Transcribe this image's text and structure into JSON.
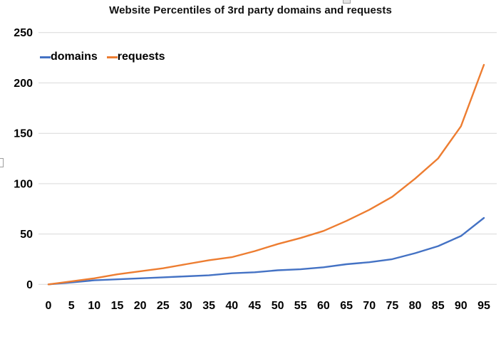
{
  "title": "Website Percentiles of 3rd party domains and requests",
  "legend": {
    "items": [
      {
        "label": "domains",
        "color": "#4472C4"
      },
      {
        "label": "requests",
        "color": "#ED7D31"
      }
    ]
  },
  "colors": {
    "domains": "#4472C4",
    "requests": "#ED7D31",
    "gridline": "#D9D9D9",
    "axis_text": "#000000",
    "background": "#FFFFFF"
  },
  "chart_data": {
    "type": "line",
    "title": "Website Percentiles of 3rd party domains and requests",
    "xlabel": "",
    "ylabel": "",
    "x": [
      0,
      5,
      10,
      15,
      20,
      25,
      30,
      35,
      40,
      45,
      50,
      55,
      60,
      65,
      70,
      75,
      80,
      85,
      90,
      95
    ],
    "series": [
      {
        "name": "domains",
        "color": "#4472C4",
        "values": [
          0,
          2,
          4,
          5,
          6,
          7,
          8,
          9,
          11,
          12,
          14,
          15,
          17,
          20,
          22,
          25,
          31,
          38,
          48,
          66
        ]
      },
      {
        "name": "requests",
        "color": "#ED7D31",
        "values": [
          0,
          3,
          6,
          10,
          13,
          16,
          20,
          24,
          27,
          33,
          40,
          46,
          53,
          63,
          74,
          87,
          105,
          125,
          157,
          218
        ]
      }
    ],
    "ylim": [
      0,
      250
    ],
    "yticks": [
      0,
      50,
      100,
      150,
      200,
      250
    ],
    "grid": "horizontal-only",
    "legend_position": "top-left-inside"
  }
}
